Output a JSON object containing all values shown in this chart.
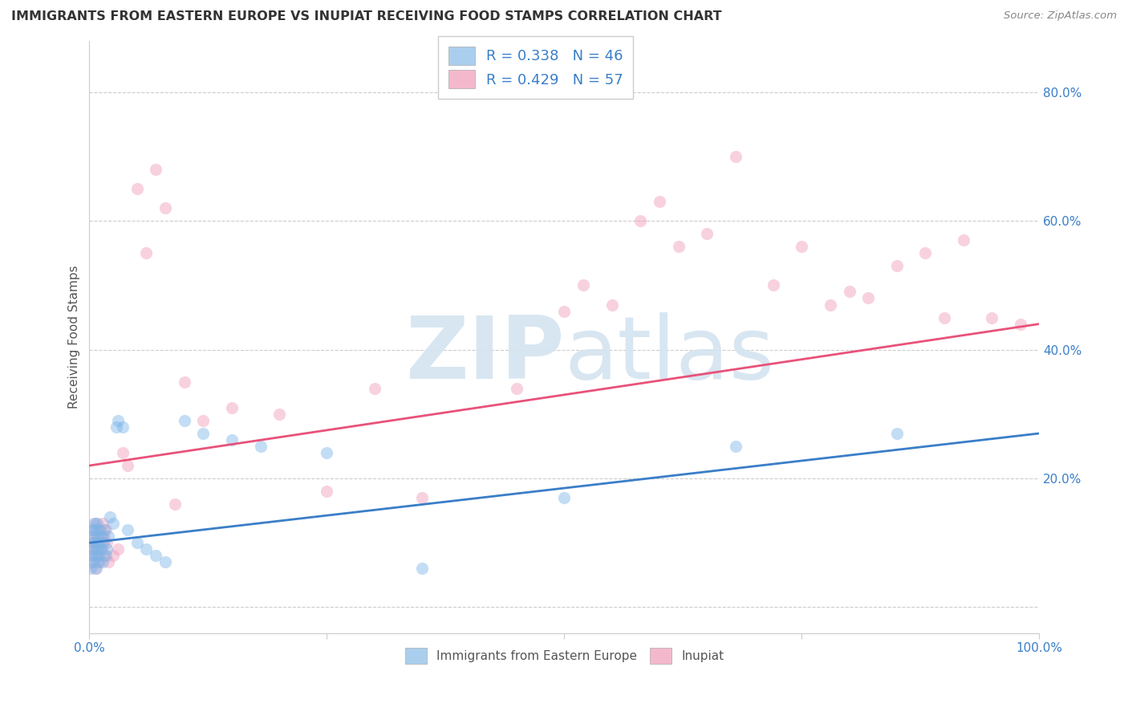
{
  "title": "IMMIGRANTS FROM EASTERN EUROPE VS INUPIAT RECEIVING FOOD STAMPS CORRELATION CHART",
  "source": "Source: ZipAtlas.com",
  "ylabel": "Receiving Food Stamps",
  "xlim": [
    0,
    1
  ],
  "ylim": [
    -0.04,
    0.88
  ],
  "blue_scatter_x": [
    0.001,
    0.002,
    0.003,
    0.003,
    0.004,
    0.004,
    0.005,
    0.005,
    0.006,
    0.006,
    0.007,
    0.007,
    0.008,
    0.008,
    0.009,
    0.009,
    0.01,
    0.01,
    0.011,
    0.012,
    0.013,
    0.014,
    0.015,
    0.016,
    0.017,
    0.018,
    0.02,
    0.022,
    0.025,
    0.028,
    0.03,
    0.035,
    0.04,
    0.05,
    0.06,
    0.07,
    0.08,
    0.1,
    0.12,
    0.15,
    0.18,
    0.25,
    0.35,
    0.5,
    0.68,
    0.85
  ],
  "blue_scatter_y": [
    0.06,
    0.08,
    0.1,
    0.12,
    0.07,
    0.11,
    0.09,
    0.13,
    0.08,
    0.12,
    0.1,
    0.06,
    0.09,
    0.13,
    0.07,
    0.11,
    0.1,
    0.08,
    0.12,
    0.09,
    0.11,
    0.07,
    0.1,
    0.12,
    0.08,
    0.09,
    0.11,
    0.14,
    0.13,
    0.28,
    0.29,
    0.28,
    0.12,
    0.1,
    0.09,
    0.08,
    0.07,
    0.29,
    0.27,
    0.26,
    0.25,
    0.24,
    0.06,
    0.17,
    0.25,
    0.27
  ],
  "pink_scatter_x": [
    0.001,
    0.002,
    0.003,
    0.004,
    0.004,
    0.005,
    0.006,
    0.006,
    0.007,
    0.008,
    0.009,
    0.01,
    0.011,
    0.012,
    0.013,
    0.014,
    0.015,
    0.016,
    0.017,
    0.018,
    0.02,
    0.025,
    0.03,
    0.035,
    0.04,
    0.05,
    0.06,
    0.07,
    0.08,
    0.09,
    0.1,
    0.12,
    0.15,
    0.2,
    0.25,
    0.3,
    0.35,
    0.45,
    0.5,
    0.52,
    0.55,
    0.58,
    0.6,
    0.62,
    0.65,
    0.68,
    0.72,
    0.75,
    0.78,
    0.8,
    0.82,
    0.85,
    0.88,
    0.9,
    0.92,
    0.95,
    0.98
  ],
  "pink_scatter_y": [
    0.07,
    0.09,
    0.11,
    0.08,
    0.12,
    0.1,
    0.06,
    0.13,
    0.09,
    0.11,
    0.08,
    0.12,
    0.07,
    0.1,
    0.09,
    0.13,
    0.11,
    0.08,
    0.12,
    0.1,
    0.07,
    0.08,
    0.09,
    0.24,
    0.22,
    0.65,
    0.55,
    0.68,
    0.62,
    0.16,
    0.35,
    0.29,
    0.31,
    0.3,
    0.18,
    0.34,
    0.17,
    0.34,
    0.46,
    0.5,
    0.47,
    0.6,
    0.63,
    0.56,
    0.58,
    0.7,
    0.5,
    0.56,
    0.47,
    0.49,
    0.48,
    0.53,
    0.55,
    0.45,
    0.57,
    0.45,
    0.44
  ],
  "blue_line_y_start": 0.1,
  "blue_line_y_end": 0.27,
  "pink_line_y_start": 0.22,
  "pink_line_y_end": 0.44,
  "scatter_size": 120,
  "scatter_alpha": 0.45,
  "blue_color": "#7ab4e8",
  "pink_color": "#f09ab8",
  "blue_line_color": "#3a7ec8",
  "pink_line_color": "#e8527a",
  "grid_color": "#cccccc",
  "legend_R1": "0.338",
  "legend_N1": "46",
  "legend_R2": "0.429",
  "legend_N2": "57",
  "legend_color1": "#aacfee",
  "legend_color2": "#f4b8cc",
  "watermark_color": "#d4e4f0",
  "title_fontsize": 11.5,
  "axis_label_fontsize": 11,
  "tick_fontsize": 11
}
